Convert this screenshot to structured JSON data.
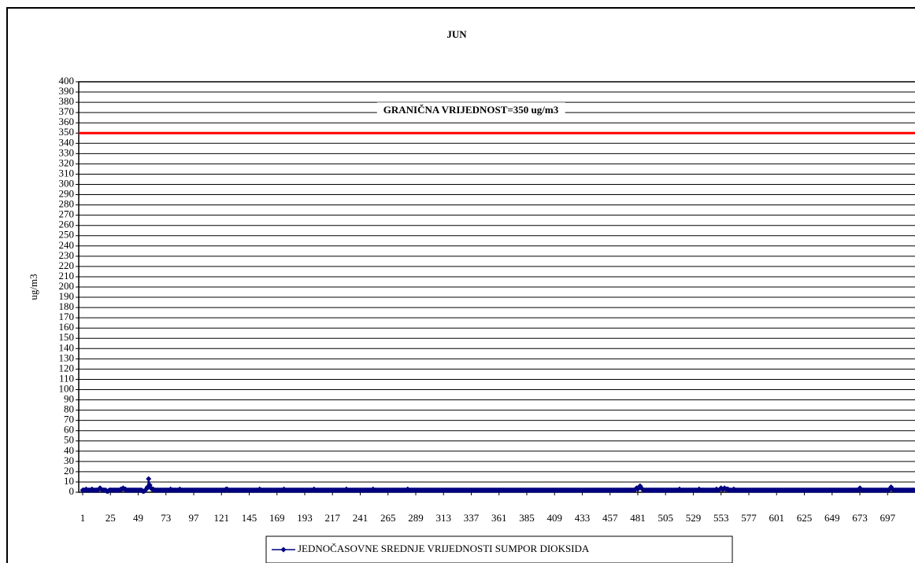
{
  "chart_data": {
    "type": "line",
    "title": "JUN",
    "ylabel": "ug/m3",
    "xlim": [
      1,
      720
    ],
    "xticks": [
      1,
      25,
      49,
      73,
      97,
      121,
      145,
      169,
      193,
      217,
      241,
      265,
      289,
      313,
      337,
      361,
      385,
      409,
      433,
      457,
      481,
      505,
      529,
      553,
      577,
      601,
      625,
      649,
      673,
      697
    ],
    "ylim": [
      0,
      400
    ],
    "yticks": [
      0,
      10,
      20,
      30,
      40,
      50,
      60,
      70,
      80,
      90,
      100,
      110,
      120,
      130,
      140,
      150,
      160,
      170,
      180,
      190,
      200,
      210,
      220,
      230,
      240,
      250,
      260,
      270,
      280,
      290,
      300,
      310,
      320,
      330,
      340,
      350,
      360,
      370,
      380,
      390,
      400
    ],
    "grid": true,
    "threshold": {
      "value": 350,
      "label": "GRANIČNA VRIJEDNOST=350 ug/m3",
      "color": "#ff0000"
    },
    "x": [
      1,
      2,
      3,
      4,
      5,
      6,
      7,
      8,
      9,
      10,
      11,
      12,
      13,
      14,
      15,
      16,
      17,
      18,
      19,
      20,
      21,
      22,
      23,
      24,
      25,
      26,
      27,
      28,
      29,
      30,
      31,
      32,
      33,
      34,
      35,
      36,
      37,
      38,
      39,
      40,
      41,
      42,
      43,
      44,
      45,
      46,
      47,
      48,
      49,
      50,
      51,
      52,
      53,
      54,
      55,
      56,
      57,
      58,
      59,
      60,
      61,
      62,
      63,
      64,
      65,
      66,
      67,
      68,
      69,
      70,
      71,
      72,
      73,
      74,
      75,
      76,
      77,
      78,
      79,
      80,
      81,
      82,
      83,
      84,
      85,
      86,
      87,
      88,
      89,
      90,
      91,
      92,
      93,
      94,
      95,
      96,
      97,
      98,
      99,
      100,
      101,
      102,
      103,
      104,
      105,
      106,
      107,
      108,
      109,
      110,
      111,
      112,
      113,
      114,
      115,
      116,
      117,
      118,
      119,
      120,
      121,
      122,
      123,
      124,
      125,
      126,
      127,
      128,
      129,
      130,
      131,
      132,
      133,
      134,
      135,
      136,
      137,
      138,
      139,
      140,
      141,
      142,
      143,
      144,
      145,
      146,
      147,
      148,
      149,
      150,
      151,
      152,
      153,
      154,
      155,
      156,
      157,
      158,
      159,
      160,
      161,
      162,
      163,
      164,
      165,
      166,
      167,
      168,
      169,
      170,
      171,
      172,
      173,
      174,
      175,
      176,
      177,
      178,
      179,
      180,
      181,
      182,
      183,
      184,
      185,
      186,
      187,
      188,
      189,
      190,
      191,
      192,
      193,
      194,
      195,
      196,
      197,
      198,
      199,
      200,
      201,
      202,
      203,
      204,
      205,
      206,
      207,
      208,
      209,
      210,
      211,
      212,
      213,
      214,
      215,
      216,
      217,
      218,
      219,
      220,
      221,
      222,
      223,
      224,
      225,
      226,
      227,
      228,
      229,
      230,
      231,
      232,
      233,
      234,
      235,
      236,
      237,
      238,
      239,
      240,
      241,
      242,
      243,
      244,
      245,
      246,
      247,
      248,
      249,
      250,
      251,
      252,
      253,
      254,
      255,
      256,
      257,
      258,
      259,
      260,
      261,
      262,
      263,
      264,
      265,
      266,
      267,
      268,
      269,
      270,
      271,
      272,
      273,
      274,
      275,
      276,
      277,
      278,
      279,
      280,
      281,
      282,
      283,
      284,
      285,
      286,
      287,
      288,
      289,
      290,
      291,
      292,
      293,
      294,
      295,
      296,
      297,
      298,
      299,
      300,
      301,
      302,
      303,
      304,
      305,
      306,
      307,
      308,
      309,
      310,
      311,
      312,
      313,
      314,
      315,
      316,
      317,
      318,
      319,
      320,
      321,
      322,
      323,
      324,
      325,
      326,
      327,
      328,
      329,
      330,
      331,
      332,
      333,
      334,
      335,
      336,
      337,
      338,
      339,
      340,
      341,
      342,
      343,
      344,
      345,
      346,
      347,
      348,
      349,
      350,
      351,
      352,
      353,
      354,
      355,
      356,
      357,
      358,
      359,
      360,
      361,
      362,
      363,
      364,
      365,
      366,
      367,
      368,
      369,
      370,
      371,
      372,
      373,
      374,
      375,
      376,
      377,
      378,
      379,
      380,
      381,
      382,
      383,
      384,
      385,
      386,
      387,
      388,
      389,
      390,
      391,
      392,
      393,
      394,
      395,
      396,
      397,
      398,
      399,
      400,
      401,
      402,
      403,
      404,
      405,
      406,
      407,
      408,
      409,
      410,
      411,
      412,
      413,
      414,
      415,
      416,
      417,
      418,
      419,
      420,
      421,
      422,
      423,
      424,
      425,
      426,
      427,
      428,
      429,
      430,
      431,
      432,
      433,
      434,
      435,
      436,
      437,
      438,
      439,
      440,
      441,
      442,
      443,
      444,
      445,
      446,
      447,
      448,
      449,
      450,
      451,
      452,
      453,
      454,
      455,
      456,
      457,
      458,
      459,
      460,
      461,
      462,
      463,
      464,
      465,
      466,
      467,
      468,
      469,
      470,
      471,
      472,
      473,
      474,
      475,
      476,
      477,
      478,
      479,
      480,
      481,
      482,
      483,
      484,
      485,
      486,
      487,
      488,
      489,
      490,
      491,
      492,
      493,
      494,
      495,
      496,
      497,
      498,
      499,
      500,
      501,
      502,
      503,
      504,
      505,
      506,
      507,
      508,
      509,
      510,
      511,
      512,
      513,
      514,
      515,
      516,
      517,
      518,
      519,
      520,
      521,
      522,
      523,
      524,
      525,
      526,
      527,
      528,
      529,
      530,
      531,
      532,
      533,
      534,
      535,
      536,
      537,
      538,
      539,
      540,
      541,
      542,
      543,
      544,
      545,
      546,
      547,
      548,
      549,
      550,
      551,
      552,
      553,
      554,
      555,
      556,
      557,
      558,
      559,
      560,
      561,
      562,
      563,
      564,
      565,
      566,
      567,
      568,
      569,
      570,
      571,
      572,
      573,
      574,
      575,
      576,
      577,
      578,
      579,
      580,
      581,
      582,
      583,
      584,
      585,
      586,
      587,
      588,
      589,
      590,
      591,
      592,
      593,
      594,
      595,
      596,
      597,
      598,
      599,
      600,
      601,
      602,
      603,
      604,
      605,
      606,
      607,
      608,
      609,
      610,
      611,
      612,
      613,
      614,
      615,
      616,
      617,
      618,
      619,
      620,
      621,
      622,
      623,
      624,
      625,
      626,
      627,
      628,
      629,
      630,
      631,
      632,
      633,
      634,
      635,
      636,
      637,
      638,
      639,
      640,
      641,
      642,
      643,
      644,
      645,
      646,
      647,
      648,
      649,
      650,
      651,
      652,
      653,
      654,
      655,
      656,
      657,
      658,
      659,
      660,
      661,
      662,
      663,
      664,
      665,
      666,
      667,
      668,
      669,
      670,
      671,
      672,
      673,
      674,
      675,
      676,
      677,
      678,
      679,
      680,
      681,
      682,
      683,
      684,
      685,
      686,
      687,
      688,
      689,
      690,
      691,
      692,
      693,
      694,
      695,
      696,
      697,
      698,
      699,
      700,
      701,
      702,
      703,
      704,
      705,
      706,
      707,
      708,
      709,
      710,
      711,
      712,
      713,
      714,
      715,
      716,
      717,
      718,
      719,
      720
    ],
    "series": [
      {
        "name": "JEDNOČASOVNE SREDNJE VRIJEDNOSTI SUMPOR DIOKSIDA",
        "color": "#000080",
        "values": [
          2,
          2,
          2,
          3,
          2,
          2,
          2,
          2,
          3,
          2,
          2,
          2,
          2,
          2,
          3,
          4,
          3,
          2,
          2,
          2,
          2,
          1,
          1,
          2,
          2,
          2,
          2,
          2,
          2,
          2,
          2,
          2,
          2,
          3,
          3,
          4,
          3,
          3,
          2,
          2,
          2,
          2,
          2,
          2,
          2,
          2,
          2,
          2,
          2,
          2,
          2,
          2,
          1,
          1,
          2,
          3,
          5,
          13,
          7,
          4,
          3,
          3,
          2,
          2,
          2,
          2,
          2,
          2,
          2,
          2,
          2,
          2,
          2,
          2,
          2,
          2,
          3,
          2,
          2,
          2,
          2,
          2,
          2,
          2,
          3,
          2,
          2,
          2,
          2,
          2,
          2,
          2,
          2,
          2,
          2,
          2,
          2,
          2,
          2,
          2,
          2,
          2,
          2,
          2,
          2,
          2,
          2,
          2,
          2,
          2,
          2,
          2,
          2,
          2,
          2,
          2,
          2,
          2,
          2,
          2,
          2,
          2,
          2,
          2,
          3,
          3,
          2,
          2,
          2,
          2,
          2,
          2,
          2,
          2,
          2,
          2,
          2,
          2,
          2,
          2,
          2,
          2,
          2,
          2,
          2,
          2,
          2,
          2,
          2,
          2,
          2,
          2,
          2,
          3,
          2,
          2,
          2,
          2,
          2,
          2,
          2,
          2,
          2,
          2,
          2,
          2,
          2,
          2,
          2,
          2,
          2,
          2,
          2,
          2,
          3,
          2,
          2,
          2,
          2,
          2,
          2,
          2,
          2,
          2,
          2,
          2,
          2,
          2,
          2,
          2,
          2,
          2,
          2,
          2,
          2,
          2,
          2,
          2,
          2,
          2,
          3,
          2,
          2,
          2,
          2,
          2,
          2,
          2,
          2,
          2,
          2,
          2,
          2,
          2,
          2,
          2,
          2,
          2,
          2,
          2,
          2,
          2,
          2,
          2,
          2,
          2,
          2,
          2,
          3,
          2,
          2,
          2,
          2,
          2,
          2,
          2,
          2,
          2,
          2,
          2,
          2,
          2,
          2,
          2,
          2,
          2,
          2,
          2,
          2,
          2,
          2,
          3,
          2,
          2,
          2,
          2,
          2,
          2,
          2,
          2,
          2,
          2,
          2,
          2,
          2,
          2,
          2,
          2,
          2,
          2,
          2,
          2,
          2,
          2,
          2,
          2,
          2,
          2,
          2,
          2,
          2,
          3,
          2,
          2,
          2,
          2,
          2,
          2,
          2,
          2,
          2,
          2,
          2,
          2,
          2,
          2,
          2,
          2,
          2,
          2,
          2,
          2,
          2,
          2,
          2,
          2,
          2,
          2,
          2,
          2,
          2,
          2,
          2,
          2,
          2,
          2,
          2,
          2,
          2,
          2,
          2,
          2,
          2,
          2,
          2,
          2,
          2,
          2,
          2,
          2,
          2,
          2,
          2,
          2,
          2,
          2,
          2,
          2,
          2,
          2,
          2,
          2,
          2,
          2,
          2,
          2,
          2,
          2,
          2,
          2,
          2,
          2,
          2,
          2,
          2,
          2,
          2,
          2,
          2,
          2,
          2,
          2,
          2,
          2,
          2,
          2,
          2,
          2,
          2,
          2,
          2,
          2,
          2,
          2,
          2,
          2,
          2,
          2,
          2,
          2,
          2,
          2,
          2,
          2,
          2,
          2,
          2,
          2,
          2,
          2,
          2,
          2,
          2,
          2,
          2,
          2,
          2,
          2,
          2,
          2,
          2,
          2,
          2,
          2,
          2,
          2,
          2,
          2,
          2,
          2,
          2,
          2,
          2,
          2,
          2,
          2,
          2,
          2,
          2,
          2,
          2,
          2,
          2,
          2,
          2,
          2,
          2,
          2,
          2,
          2,
          2,
          2,
          2,
          2,
          2,
          2,
          2,
          2,
          2,
          2,
          2,
          2,
          2,
          2,
          2,
          2,
          2,
          2,
          2,
          2,
          2,
          2,
          2,
          2,
          2,
          2,
          2,
          2,
          2,
          2,
          2,
          2,
          2,
          2,
          2,
          2,
          2,
          2,
          2,
          2,
          2,
          2,
          2,
          2,
          2,
          2,
          2,
          2,
          3,
          4,
          3,
          5,
          6,
          4,
          3,
          2,
          2,
          2,
          2,
          2,
          2,
          2,
          2,
          2,
          2,
          2,
          2,
          2,
          2,
          2,
          2,
          2,
          2,
          2,
          2,
          2,
          2,
          2,
          2,
          2,
          2,
          2,
          2,
          2,
          2,
          2,
          3,
          2,
          2,
          2,
          2,
          2,
          2,
          2,
          2,
          2,
          2,
          2,
          2,
          2,
          2,
          2,
          2,
          3,
          2,
          2,
          2,
          2,
          2,
          2,
          2,
          2,
          2,
          2,
          2,
          2,
          2,
          2,
          3,
          2,
          2,
          3,
          4,
          3,
          3,
          4,
          3,
          3,
          3,
          2,
          2,
          2,
          2,
          3,
          2,
          2,
          2,
          2,
          2,
          2,
          2,
          2,
          2,
          2,
          2,
          2,
          2,
          2,
          2,
          2,
          2,
          2,
          2,
          2,
          2,
          2,
          2,
          2,
          2,
          2,
          2,
          2,
          2,
          2,
          2,
          2,
          2,
          2,
          2,
          2,
          2,
          2,
          2,
          2,
          2,
          2,
          2,
          2,
          2,
          2,
          2,
          2,
          2,
          2,
          2,
          2,
          2,
          2,
          2,
          2,
          2,
          2,
          2,
          2,
          2,
          2,
          2,
          2,
          2,
          2,
          2,
          2,
          2,
          2,
          2,
          2,
          2,
          2,
          2,
          2,
          2,
          2,
          2,
          2,
          2,
          2,
          2,
          2,
          2,
          2,
          2,
          2,
          2,
          2,
          2,
          2,
          2,
          2,
          2,
          2,
          2,
          2,
          2,
          2,
          2,
          2,
          2,
          2,
          2,
          2,
          2,
          2,
          4,
          3,
          2,
          2,
          2,
          2,
          2,
          2,
          2,
          2,
          2,
          2,
          2,
          2,
          2,
          2,
          2,
          2,
          2,
          2,
          2,
          2,
          2,
          2,
          2,
          2,
          3,
          5,
          3,
          2,
          2,
          2,
          2,
          2,
          2,
          2,
          2,
          2,
          2,
          2,
          2,
          2,
          2,
          2,
          2,
          2,
          2,
          2
        ]
      }
    ]
  }
}
